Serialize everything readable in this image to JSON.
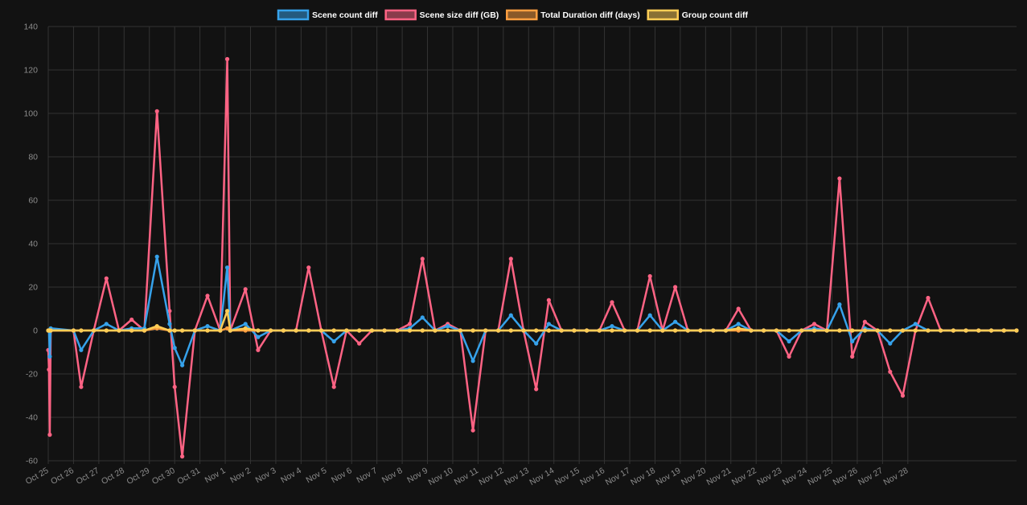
{
  "chart_data": {
    "type": "line",
    "grid": true,
    "legend_position": "top",
    "ylim": [
      -60,
      140
    ],
    "y_ticks": [
      -60,
      -40,
      -20,
      0,
      20,
      40,
      60,
      80,
      100,
      120,
      140
    ],
    "xlim": [
      25,
      63.3
    ],
    "x_ticks": [
      {
        "label": "Oct 25",
        "x": 25
      },
      {
        "label": "Oct 26",
        "x": 26
      },
      {
        "label": "Oct 27",
        "x": 27
      },
      {
        "label": "Oct 28",
        "x": 28
      },
      {
        "label": "Oct 29",
        "x": 29
      },
      {
        "label": "Oct 30",
        "x": 30
      },
      {
        "label": "Oct 31",
        "x": 31
      },
      {
        "label": "Nov 1",
        "x": 32
      },
      {
        "label": "Nov 2",
        "x": 33
      },
      {
        "label": "Nov 3",
        "x": 34
      },
      {
        "label": "Nov 4",
        "x": 35
      },
      {
        "label": "Nov 5",
        "x": 36
      },
      {
        "label": "Nov 6",
        "x": 37
      },
      {
        "label": "Nov 7",
        "x": 38
      },
      {
        "label": "Nov 8",
        "x": 39
      },
      {
        "label": "Nov 9",
        "x": 40
      },
      {
        "label": "Nov 10",
        "x": 41
      },
      {
        "label": "Nov 11",
        "x": 42
      },
      {
        "label": "Nov 12",
        "x": 43
      },
      {
        "label": "Nov 13",
        "x": 44
      },
      {
        "label": "Nov 14",
        "x": 45
      },
      {
        "label": "Nov 15",
        "x": 46
      },
      {
        "label": "Nov 16",
        "x": 47
      },
      {
        "label": "Nov 17",
        "x": 48
      },
      {
        "label": "Nov 18",
        "x": 49
      },
      {
        "label": "Nov 19",
        "x": 50
      },
      {
        "label": "Nov 20",
        "x": 51
      },
      {
        "label": "Nov 21",
        "x": 52
      },
      {
        "label": "Nov 22",
        "x": 53
      },
      {
        "label": "Nov 23",
        "x": 54
      },
      {
        "label": "Nov 24",
        "x": 55
      },
      {
        "label": "Nov 25",
        "x": 56
      },
      {
        "label": "Nov 26",
        "x": 57
      },
      {
        "label": "Nov 27",
        "x": 58
      },
      {
        "label": "Nov 28",
        "x": 59
      }
    ],
    "x": [
      25.0,
      25.03,
      25.06,
      25.1,
      26.0,
      26.3,
      26.8,
      27.3,
      27.8,
      28.3,
      28.8,
      29.3,
      29.8,
      30.0,
      30.3,
      30.8,
      31.3,
      31.8,
      32.08,
      32.2,
      32.8,
      33.3,
      33.8,
      34.3,
      34.8,
      35.3,
      35.8,
      36.3,
      36.8,
      37.3,
      37.8,
      38.3,
      38.8,
      39.3,
      39.8,
      40.3,
      40.8,
      41.3,
      41.8,
      42.3,
      42.8,
      43.3,
      43.8,
      44.3,
      44.8,
      45.3,
      45.8,
      46.3,
      46.8,
      47.3,
      47.8,
      48.3,
      48.8,
      49.3,
      49.8,
      50.3,
      50.8,
      51.3,
      51.8,
      52.3,
      52.8,
      53.3,
      53.8,
      54.3,
      54.8,
      55.3,
      55.8,
      56.3,
      56.8,
      57.3,
      57.8,
      58.3,
      58.8,
      59.3,
      59.8,
      60.3,
      60.8,
      61.3,
      61.8,
      62.3,
      62.8,
      63.3
    ],
    "series": [
      {
        "name": "Scene count diff",
        "color": "#36A2EB",
        "values": [
          0,
          0,
          -12,
          1,
          0,
          -9,
          0,
          3,
          0,
          1,
          1,
          34,
          3,
          -8,
          -16,
          0,
          2,
          0,
          29,
          0,
          3,
          -3,
          0,
          0,
          0,
          0,
          0,
          -5,
          0,
          0,
          0,
          0,
          0,
          1,
          6,
          0,
          2,
          0,
          -14,
          0,
          0,
          7,
          0,
          -6,
          3,
          0,
          0,
          0,
          0,
          2,
          0,
          0,
          7,
          0,
          4,
          0,
          0,
          0,
          0,
          3,
          0,
          0,
          0,
          -5,
          0,
          1,
          0,
          12,
          -5,
          1,
          0,
          -6,
          0,
          3,
          0,
          0,
          0,
          0,
          0,
          0,
          0,
          0
        ]
      },
      {
        "name": "Scene size diff (GB)",
        "color": "#FF6384",
        "values": [
          -9,
          -18,
          -48,
          0,
          0,
          -26,
          0,
          24,
          0,
          5,
          0,
          101,
          9,
          -26,
          -58,
          0,
          16,
          0,
          125,
          0,
          19,
          -9,
          0,
          0,
          0,
          29,
          0,
          -26,
          0,
          -6,
          0,
          0,
          0,
          3,
          33,
          0,
          3,
          0,
          -46,
          0,
          0,
          33,
          0,
          -27,
          14,
          0,
          0,
          0,
          0,
          13,
          0,
          0,
          25,
          0,
          20,
          0,
          0,
          0,
          0,
          10,
          0,
          0,
          0,
          -12,
          0,
          3,
          0,
          70,
          -12,
          4,
          0,
          -19,
          -30,
          0,
          15,
          0,
          0,
          0,
          0,
          0,
          0,
          0
        ]
      },
      {
        "name": "Total Duration diff (days)",
        "color": "#FF9F40",
        "values": [
          0,
          0,
          0,
          0,
          0,
          0,
          0,
          0,
          0,
          0,
          0,
          1,
          0,
          0,
          0,
          0,
          0,
          0,
          1,
          0,
          0,
          0,
          0,
          0,
          0,
          0,
          0,
          0,
          0,
          0,
          0,
          0,
          0,
          0,
          0,
          0,
          0,
          0,
          0,
          0,
          0,
          0,
          0,
          0,
          0,
          0,
          0,
          0,
          0,
          0,
          0,
          0,
          0,
          0,
          0,
          0,
          0,
          0,
          0,
          0,
          0,
          0,
          0,
          0,
          0,
          0,
          0,
          0,
          0,
          0,
          0,
          0,
          0,
          0,
          0,
          0,
          0,
          0,
          0,
          0,
          0,
          0
        ]
      },
      {
        "name": "Group count diff",
        "color": "#FFCD56",
        "values": [
          0,
          0,
          0,
          0,
          0,
          0,
          0,
          0,
          0,
          0,
          0,
          2,
          0,
          0,
          0,
          0,
          0,
          0,
          9,
          0,
          1,
          0,
          0,
          0,
          0,
          0,
          0,
          0,
          0,
          0,
          0,
          0,
          0,
          0,
          0,
          0,
          0,
          0,
          0,
          0,
          0,
          0,
          0,
          0,
          0,
          0,
          0,
          0,
          0,
          0,
          0,
          0,
          0,
          0,
          0,
          0,
          0,
          0,
          0,
          1,
          0,
          0,
          0,
          0,
          0,
          0,
          0,
          0,
          0,
          0,
          0,
          0,
          0,
          0,
          0,
          0,
          0,
          0,
          0,
          0,
          0,
          0
        ]
      }
    ]
  }
}
